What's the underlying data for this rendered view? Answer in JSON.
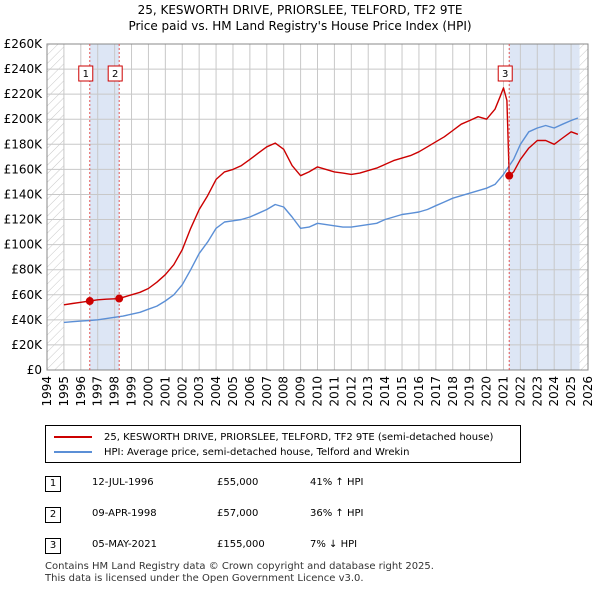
{
  "title_line1": "25, KESWORTH DRIVE, PRIORSLEE, TELFORD, TF2 9TE",
  "title_line2": "Price paid vs. HM Land Registry's House Price Index (HPI)",
  "legend": {
    "property_label": "25, KESWORTH DRIVE, PRIORSLEE, TELFORD, TF2 9TE (semi-detached house)",
    "hpi_label": "HPI: Average price, semi-detached house, Telford and Wrekin"
  },
  "transactions": [
    {
      "num": "1",
      "date": "12-JUL-1996",
      "price": "£55,000",
      "hpi": "41% ↑ HPI"
    },
    {
      "num": "2",
      "date": "09-APR-1998",
      "price": "£57,000",
      "hpi": "36% ↑ HPI"
    },
    {
      "num": "3",
      "date": "05-MAY-2021",
      "price": "£155,000",
      "hpi": "7% ↓ HPI"
    }
  ],
  "footer_line1": "Contains HM Land Registry data © Crown copyright and database right 2025.",
  "footer_line2": "This data is licensed under the Open Government Licence v3.0.",
  "colors": {
    "property": "#cc0000",
    "hpi": "#5b8fd6",
    "shade": "#dde6f5",
    "grid": "#c8c8c8",
    "marker_line": "#e05555"
  },
  "chart_data": {
    "type": "line",
    "xlim": [
      1994,
      2026
    ],
    "ylim": [
      0,
      260000
    ],
    "x_ticks": [
      1994,
      1995,
      1996,
      1997,
      1998,
      1999,
      2000,
      2001,
      2002,
      2003,
      2004,
      2005,
      2006,
      2007,
      2008,
      2009,
      2010,
      2011,
      2012,
      2013,
      2014,
      2015,
      2016,
      2017,
      2018,
      2019,
      2020,
      2021,
      2022,
      2023,
      2024,
      2025,
      2026
    ],
    "y_ticks": [
      0,
      20000,
      40000,
      60000,
      80000,
      100000,
      120000,
      140000,
      160000,
      180000,
      200000,
      220000,
      240000,
      260000
    ],
    "y_tick_labels": [
      "£0",
      "£20K",
      "£40K",
      "£60K",
      "£80K",
      "£100K",
      "£120K",
      "£140K",
      "£160K",
      "£180K",
      "£200K",
      "£220K",
      "£240K",
      "£260K"
    ],
    "shaded_ranges": [
      [
        1996.53,
        1998.27
      ],
      [
        2021.34,
        2025.5
      ]
    ],
    "hatched_ranges": [
      [
        1994,
        1995
      ],
      [
        2025.5,
        2026
      ]
    ],
    "markers": [
      {
        "label": "1",
        "x": 1996.53,
        "y": 55000
      },
      {
        "label": "2",
        "x": 1998.27,
        "y": 57000
      },
      {
        "label": "3",
        "x": 2021.34,
        "y": 155000
      }
    ],
    "series": [
      {
        "name": "HPI: Average price, semi-detached house, Telford and Wrekin",
        "x": [
          1995.0,
          1995.5,
          1996.0,
          1996.5,
          1997.0,
          1997.5,
          1998.0,
          1998.5,
          1999.0,
          1999.5,
          2000.0,
          2000.5,
          2001.0,
          2001.5,
          2002.0,
          2002.5,
          2003.0,
          2003.5,
          2004.0,
          2004.5,
          2005.0,
          2005.5,
          2006.0,
          2006.5,
          2007.0,
          2007.5,
          2008.0,
          2008.5,
          2009.0,
          2009.5,
          2010.0,
          2010.5,
          2011.0,
          2011.5,
          2012.0,
          2012.5,
          2013.0,
          2013.5,
          2014.0,
          2014.5,
          2015.0,
          2015.5,
          2016.0,
          2016.5,
          2017.0,
          2017.5,
          2018.0,
          2018.5,
          2019.0,
          2019.5,
          2020.0,
          2020.5,
          2021.0,
          2021.3,
          2021.6,
          2022.0,
          2022.5,
          2023.0,
          2023.5,
          2024.0,
          2024.5,
          2025.0,
          2025.4
        ],
        "values": [
          38000,
          38500,
          39000,
          39500,
          40000,
          41000,
          42000,
          43000,
          44500,
          46000,
          48500,
          51000,
          55000,
          60000,
          68000,
          80000,
          93000,
          102000,
          113000,
          118000,
          119000,
          120000,
          122000,
          125000,
          128000,
          132000,
          130000,
          122000,
          113000,
          114000,
          117000,
          116000,
          115000,
          114000,
          114000,
          115000,
          116000,
          117000,
          120000,
          122000,
          124000,
          125000,
          126000,
          128000,
          131000,
          134000,
          137000,
          139000,
          141000,
          143000,
          145000,
          148000,
          156000,
          162000,
          168000,
          180000,
          190000,
          193000,
          195000,
          193000,
          196000,
          199000,
          201000
        ]
      },
      {
        "name": "25, KESWORTH DRIVE, PRIORSLEE, TELFORD, TF2 9TE (semi-detached house)",
        "x": [
          1995.0,
          1995.5,
          1996.0,
          1996.53,
          1997.0,
          1997.5,
          1998.0,
          1998.27,
          1998.5,
          1999.0,
          1999.5,
          2000.0,
          2000.5,
          2001.0,
          2001.5,
          2002.0,
          2002.5,
          2003.0,
          2003.5,
          2004.0,
          2004.5,
          2005.0,
          2005.5,
          2006.0,
          2006.5,
          2007.0,
          2007.5,
          2008.0,
          2008.5,
          2009.0,
          2009.5,
          2010.0,
          2010.5,
          2011.0,
          2011.5,
          2012.0,
          2012.5,
          2013.0,
          2013.5,
          2014.0,
          2014.5,
          2015.0,
          2015.5,
          2016.0,
          2016.5,
          2017.0,
          2017.5,
          2018.0,
          2018.5,
          2019.0,
          2019.5,
          2020.0,
          2020.5,
          2020.8,
          2021.0,
          2021.2,
          2021.34,
          2021.6,
          2022.0,
          2022.5,
          2023.0,
          2023.5,
          2024.0,
          2024.5,
          2025.0,
          2025.4
        ],
        "values": [
          52000,
          53000,
          54000,
          55000,
          56000,
          56500,
          56800,
          57000,
          58000,
          60000,
          62000,
          65000,
          70000,
          76000,
          84000,
          96000,
          113000,
          128000,
          139000,
          152000,
          158000,
          160000,
          163000,
          168000,
          173000,
          178000,
          181000,
          176000,
          163000,
          155000,
          158000,
          162000,
          160000,
          158000,
          157000,
          156000,
          157000,
          159000,
          161000,
          164000,
          167000,
          169000,
          171000,
          174000,
          178000,
          182000,
          186000,
          191000,
          196000,
          199000,
          202000,
          200000,
          208000,
          218000,
          225000,
          215000,
          155000,
          158000,
          168000,
          177000,
          183000,
          183000,
          180000,
          185000,
          190000,
          188000
        ]
      }
    ]
  }
}
